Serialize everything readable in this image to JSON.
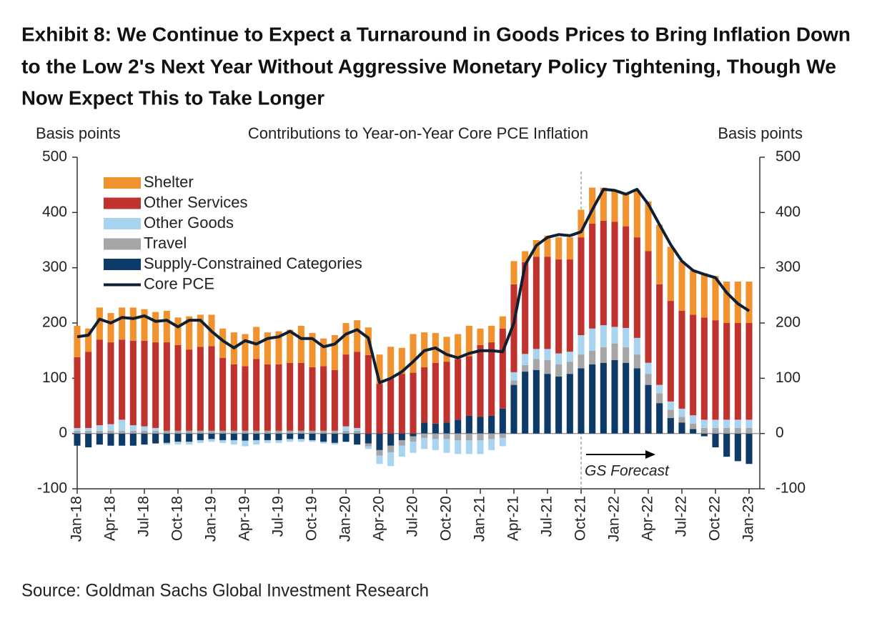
{
  "chart_data": {
    "type": "bar",
    "title": [
      "Exhibit 8: We Continue to Expect a Turnaround in Goods Prices to Bring Inflation Down",
      "to the Low 2's Next Year Without Aggressive Monetary Policy Tightening, Though We",
      "Now Expect This to Take Longer"
    ],
    "subtitle": "Contributions to Year-on-Year  Core PCE Inflation",
    "y_label": "Basis points",
    "y2_label": "Basis points",
    "annotation": "GS Forecast",
    "source": "Source: Goldman Sachs Global Investment Research",
    "categories": [
      "Jan-18",
      null,
      null,
      "Apr-18",
      null,
      null,
      "Jul-18",
      null,
      null,
      "Oct-18",
      null,
      null,
      "Jan-19",
      null,
      null,
      "Apr-19",
      null,
      null,
      "Jul-19",
      null,
      null,
      "Oct-19",
      null,
      null,
      "Jan-20",
      null,
      null,
      "Apr-20",
      null,
      null,
      "Jul-20",
      null,
      null,
      "Oct-20",
      null,
      null,
      "Jan-21",
      null,
      null,
      "Apr-21",
      null,
      null,
      "Jul-21",
      null,
      null,
      "Oct-21",
      null,
      null,
      "Jan-22",
      null,
      null,
      "Apr-22",
      null,
      null,
      "Jul-22",
      null,
      null,
      "Oct-22",
      null,
      null,
      "Jan-23"
    ],
    "ylim": [
      -100,
      500
    ],
    "yticks": [
      -100,
      0,
      100,
      200,
      300,
      400,
      500
    ],
    "y2lim": [
      -100,
      500
    ],
    "y2ticks": [
      -100,
      0,
      100,
      200,
      300,
      400,
      500
    ],
    "legend": "upper left",
    "series": [
      {
        "name": "Supply-Constrained Categories",
        "color": "#0d3a66",
        "values": [
          -22,
          -25,
          -20,
          -22,
          -22,
          -22,
          -20,
          -18,
          -17,
          -15,
          -15,
          -12,
          -10,
          -12,
          -12,
          -13,
          -12,
          -12,
          -12,
          -10,
          -10,
          -12,
          -15,
          -17,
          -15,
          -20,
          -18,
          -30,
          -22,
          -12,
          -5,
          20,
          18,
          20,
          25,
          32,
          30,
          32,
          45,
          88,
          112,
          115,
          108,
          103,
          108,
          118,
          125,
          128,
          133,
          128,
          118,
          88,
          55,
          28,
          20,
          8,
          -5,
          -25,
          -42,
          -50,
          -55
        ]
      },
      {
        "name": "Travel",
        "color": "#a6a6a6",
        "values": [
          5,
          5,
          5,
          5,
          5,
          5,
          5,
          5,
          5,
          5,
          5,
          5,
          5,
          5,
          5,
          5,
          5,
          5,
          5,
          5,
          5,
          5,
          5,
          5,
          5,
          5,
          -5,
          -10,
          -12,
          -10,
          -10,
          -8,
          -10,
          -10,
          -12,
          -12,
          -12,
          -10,
          -8,
          8,
          12,
          20,
          25,
          22,
          22,
          25,
          25,
          28,
          30,
          28,
          25,
          20,
          18,
          15,
          10,
          10,
          10,
          10,
          10,
          10,
          10
        ]
      },
      {
        "name": "Other Goods",
        "color": "#a9d4f0",
        "values": [
          5,
          5,
          10,
          12,
          20,
          10,
          8,
          5,
          -3,
          -5,
          -5,
          -5,
          -5,
          -5,
          -8,
          -10,
          -8,
          -5,
          -5,
          -5,
          -5,
          -3,
          -3,
          -3,
          8,
          5,
          -5,
          -15,
          -25,
          -20,
          -20,
          -20,
          -20,
          -25,
          -25,
          -25,
          -25,
          -20,
          -15,
          15,
          20,
          18,
          20,
          20,
          18,
          35,
          40,
          40,
          30,
          35,
          30,
          20,
          15,
          15,
          15,
          15,
          15,
          15,
          15,
          15,
          15
        ]
      },
      {
        "name": "Other Services",
        "color": "#c0322d",
        "values": [
          128,
          138,
          155,
          148,
          145,
          153,
          155,
          155,
          160,
          155,
          147,
          152,
          153,
          132,
          120,
          117,
          130,
          120,
          120,
          123,
          123,
          115,
          117,
          110,
          130,
          138,
          142,
          90,
          100,
          108,
          110,
          100,
          110,
          110,
          110,
          108,
          130,
          133,
          145,
          159,
          166,
          167,
          167,
          170,
          167,
          177,
          190,
          189,
          190,
          184,
          182,
          202,
          182,
          182,
          177,
          182,
          185,
          180,
          175,
          175,
          175
        ]
      },
      {
        "name": "Shelter",
        "color": "#f0922e",
        "values": [
          57,
          42,
          58,
          53,
          58,
          60,
          57,
          55,
          57,
          50,
          60,
          58,
          57,
          53,
          58,
          58,
          58,
          58,
          60,
          60,
          67,
          62,
          50,
          63,
          57,
          57,
          50,
          53,
          57,
          47,
          70,
          63,
          54,
          45,
          45,
          55,
          30,
          30,
          22,
          42,
          20,
          30,
          38,
          40,
          40,
          50,
          65,
          60,
          57,
          60,
          85,
          90,
          108,
          98,
          90,
          80,
          80,
          80,
          75,
          75,
          75
        ]
      },
      {
        "name": "Core PCE",
        "color": "#0f1f33",
        "type": "line",
        "values": [
          175,
          178,
          207,
          200,
          210,
          208,
          213,
          203,
          205,
          193,
          205,
          205,
          185,
          168,
          155,
          168,
          162,
          172,
          175,
          185,
          172,
          172,
          157,
          162,
          180,
          188,
          173,
          92,
          100,
          112,
          130,
          150,
          155,
          143,
          137,
          145,
          150,
          150,
          148,
          200,
          305,
          340,
          355,
          360,
          358,
          365,
          405,
          442,
          440,
          433,
          442,
          415,
          378,
          342,
          312,
          295,
          288,
          282,
          255,
          235,
          222
        ]
      }
    ]
  }
}
